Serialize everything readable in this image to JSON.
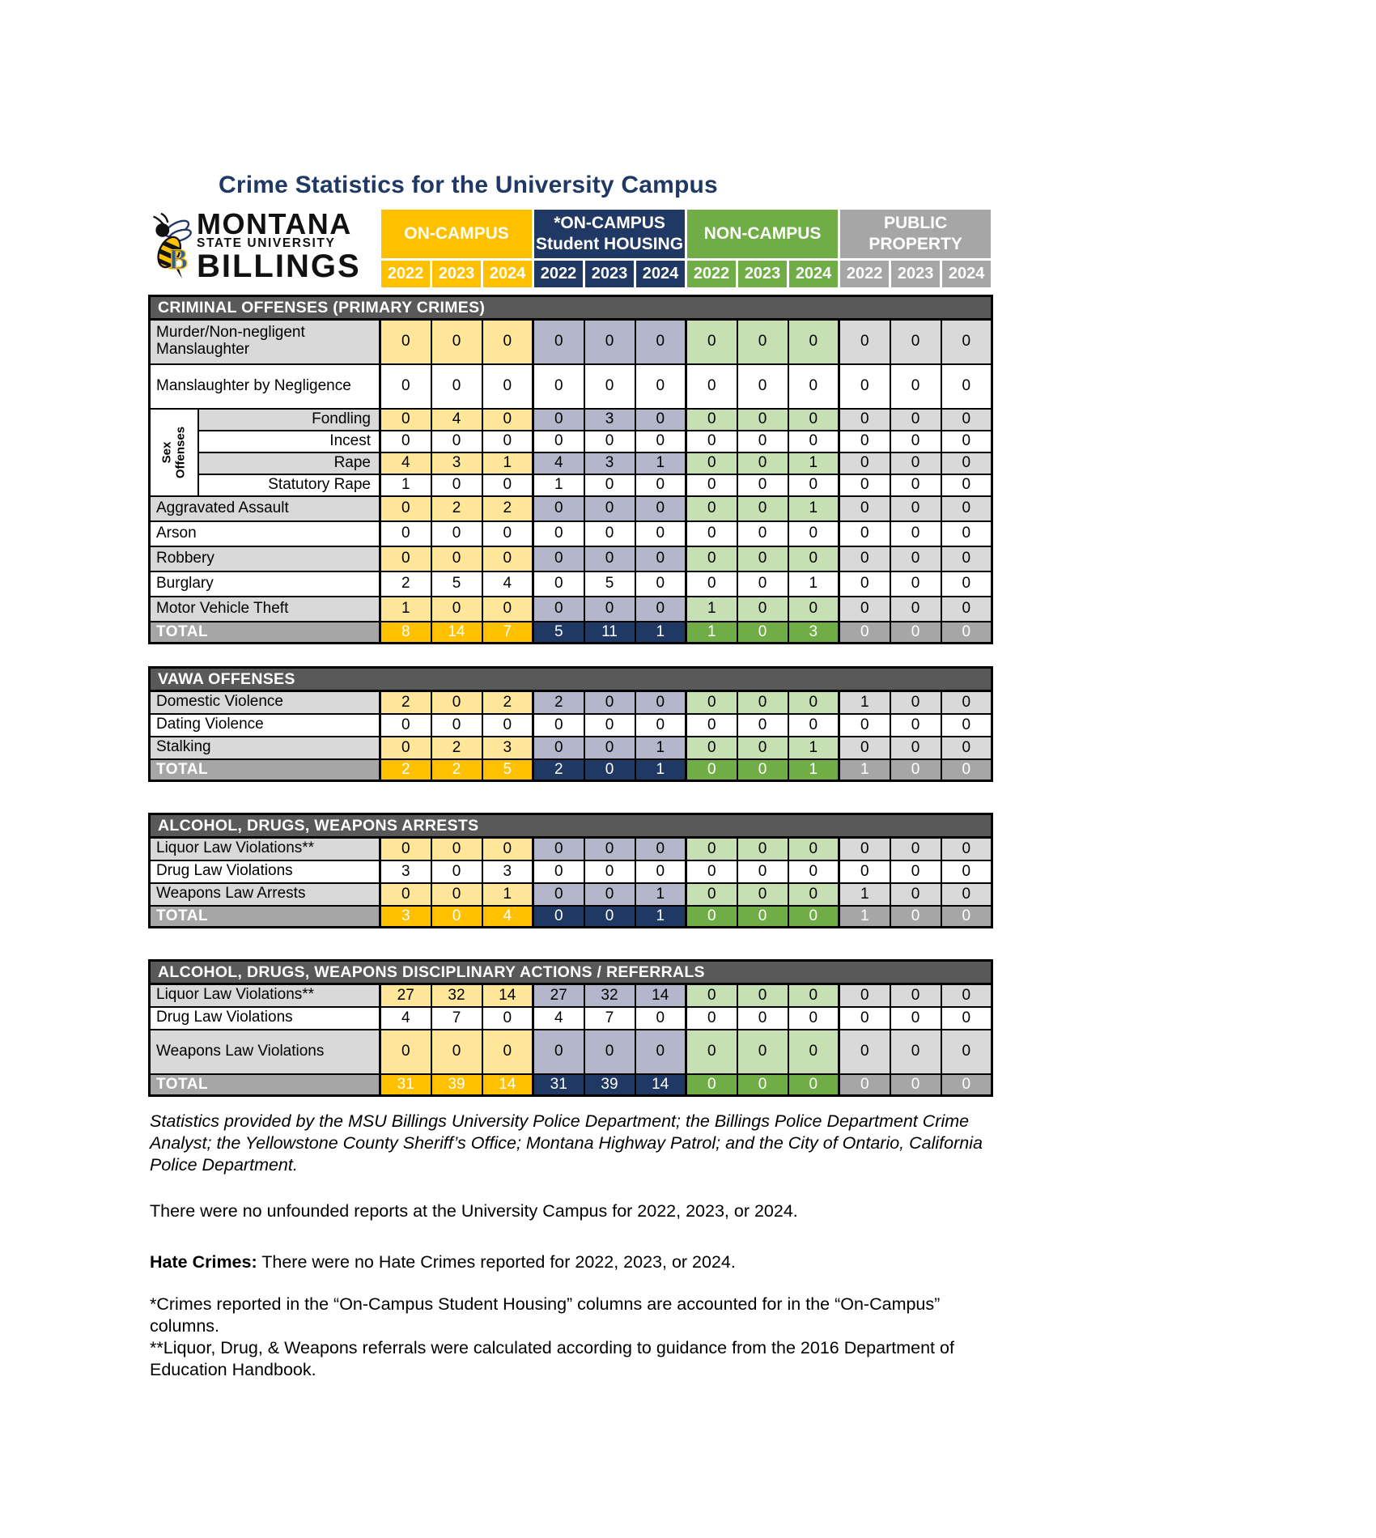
{
  "page": {
    "title": "Crime Statistics for the University Campus"
  },
  "logo": {
    "line1": "MONTANA",
    "line2": "STATE UNIVERSITY",
    "line3": "BILLINGS",
    "mascot": "yellowjacket-bee-with-blue-B"
  },
  "colors": {
    "title_text": "#1F3864",
    "section_bar": "#595959",
    "row_shade": "#D9D9D9",
    "total_label_bg": "#A6A6A6",
    "grid_border": "#000000"
  },
  "table": {
    "years": [
      "2022",
      "2023",
      "2024"
    ],
    "groups": [
      {
        "label": "ON-CAMPUS",
        "color": "#FFC000",
        "light": "#FFE699"
      },
      {
        "label": "*ON-CAMPUS\nStudent HOUSING",
        "color": "#1F3864",
        "light": "#B4B7CB"
      },
      {
        "label": "NON-CAMPUS",
        "color": "#70AD47",
        "light": "#C6E0B4"
      },
      {
        "label": "PUBLIC PROPERTY",
        "color": "#A6A6A6",
        "light": "#D9D9D9"
      }
    ],
    "sections": [
      {
        "title": "CRIMINAL OFFENSES (PRIMARY CRIMES)",
        "rows": [
          {
            "label": "Murder/Non-negligent Manslaughter",
            "shaded": true,
            "tall": true,
            "values": [
              0,
              0,
              0,
              0,
              0,
              0,
              0,
              0,
              0,
              0,
              0,
              0
            ]
          },
          {
            "label": "Manslaughter by Negligence",
            "shaded": false,
            "tall": true,
            "values": [
              0,
              0,
              0,
              0,
              0,
              0,
              0,
              0,
              0,
              0,
              0,
              0
            ]
          },
          {
            "label": "Fondling",
            "sub": true,
            "group_label": "Sex Offenses",
            "group_span": 4,
            "shaded": true,
            "values": [
              0,
              4,
              0,
              0,
              3,
              0,
              0,
              0,
              0,
              0,
              0,
              0
            ]
          },
          {
            "label": "Incest",
            "sub": true,
            "shaded": false,
            "values": [
              0,
              0,
              0,
              0,
              0,
              0,
              0,
              0,
              0,
              0,
              0,
              0
            ]
          },
          {
            "label": "Rape",
            "sub": true,
            "shaded": true,
            "values": [
              4,
              3,
              1,
              4,
              3,
              1,
              0,
              0,
              1,
              0,
              0,
              0
            ]
          },
          {
            "label": "Statutory Rape",
            "sub": true,
            "shaded": false,
            "values": [
              1,
              0,
              0,
              1,
              0,
              0,
              0,
              0,
              0,
              0,
              0,
              0
            ]
          },
          {
            "label": "Aggravated Assault",
            "shaded": true,
            "values": [
              0,
              2,
              2,
              0,
              0,
              0,
              0,
              0,
              1,
              0,
              0,
              0
            ]
          },
          {
            "label": "Arson",
            "shaded": false,
            "values": [
              0,
              0,
              0,
              0,
              0,
              0,
              0,
              0,
              0,
              0,
              0,
              0
            ]
          },
          {
            "label": "Robbery",
            "shaded": true,
            "values": [
              0,
              0,
              0,
              0,
              0,
              0,
              0,
              0,
              0,
              0,
              0,
              0
            ]
          },
          {
            "label": "Burglary",
            "shaded": false,
            "values": [
              2,
              5,
              4,
              0,
              5,
              0,
              0,
              0,
              1,
              0,
              0,
              0
            ]
          },
          {
            "label": "Motor Vehicle Theft",
            "shaded": true,
            "values": [
              1,
              0,
              0,
              0,
              0,
              0,
              1,
              0,
              0,
              0,
              0,
              0
            ]
          },
          {
            "label": "TOTAL",
            "total": true,
            "values": [
              8,
              14,
              7,
              5,
              11,
              1,
              1,
              0,
              3,
              0,
              0,
              0
            ]
          }
        ]
      },
      {
        "title": "VAWA OFFENSES",
        "rows": [
          {
            "label": "Domestic Violence",
            "shaded": true,
            "values": [
              2,
              0,
              2,
              2,
              0,
              0,
              0,
              0,
              0,
              1,
              0,
              0
            ]
          },
          {
            "label": "Dating Violence",
            "shaded": false,
            "values": [
              0,
              0,
              0,
              0,
              0,
              0,
              0,
              0,
              0,
              0,
              0,
              0
            ]
          },
          {
            "label": "Stalking",
            "shaded": true,
            "values": [
              0,
              2,
              3,
              0,
              0,
              1,
              0,
              0,
              1,
              0,
              0,
              0
            ]
          },
          {
            "label": "TOTAL",
            "total": true,
            "values": [
              2,
              2,
              5,
              2,
              0,
              1,
              0,
              0,
              1,
              1,
              0,
              0
            ]
          }
        ]
      },
      {
        "title": "ALCOHOL, DRUGS, WEAPONS ARRESTS",
        "rows": [
          {
            "label": "Liquor Law Violations**",
            "shaded": true,
            "values": [
              0,
              0,
              0,
              0,
              0,
              0,
              0,
              0,
              0,
              0,
              0,
              0
            ]
          },
          {
            "label": "Drug Law Violations",
            "shaded": false,
            "values": [
              3,
              0,
              3,
              0,
              0,
              0,
              0,
              0,
              0,
              0,
              0,
              0
            ]
          },
          {
            "label": "Weapons Law Arrests",
            "shaded": true,
            "values": [
              0,
              0,
              1,
              0,
              0,
              1,
              0,
              0,
              0,
              1,
              0,
              0
            ]
          },
          {
            "label": "TOTAL",
            "total": true,
            "values": [
              3,
              0,
              4,
              0,
              0,
              1,
              0,
              0,
              0,
              1,
              0,
              0
            ]
          }
        ]
      },
      {
        "title": "ALCOHOL, DRUGS, WEAPONS DISCIPLINARY ACTIONS / REFERRALS",
        "rows": [
          {
            "label": "Liquor Law Violations**",
            "shaded": true,
            "values": [
              27,
              32,
              14,
              27,
              32,
              14,
              0,
              0,
              0,
              0,
              0,
              0
            ]
          },
          {
            "label": "Drug Law Violations",
            "shaded": false,
            "values": [
              4,
              7,
              0,
              4,
              7,
              0,
              0,
              0,
              0,
              0,
              0,
              0
            ]
          },
          {
            "label": "Weapons Law Violations",
            "shaded": true,
            "tall": true,
            "values": [
              0,
              0,
              0,
              0,
              0,
              0,
              0,
              0,
              0,
              0,
              0,
              0
            ]
          },
          {
            "label": "TOTAL",
            "total": true,
            "values": [
              31,
              39,
              14,
              31,
              39,
              14,
              0,
              0,
              0,
              0,
              0,
              0
            ]
          }
        ]
      }
    ]
  },
  "footer": {
    "source": "Statistics provided by the MSU Billings University Police Department; the Billings Police Department Crime Analyst; the Yellowstone County Sheriff’s Office; Montana Highway Patrol; and the City of Ontario, California Police Department.",
    "unfounded": "There were no unfounded reports at the University Campus for 2022, 2023, or 2024.",
    "hate_label": "Hate Crimes:",
    "hate_sentence": "There were no Hate Crimes reported for 2022, 2023, or 2024.",
    "note_housing": "*Crimes reported in the “On-Campus Student Housing” columns are accounted for in the “On-Campus” columns.",
    "note_referrals": "**Liquor, Drug, & Weapons referrals were calculated according to guidance from the 2016 Department of Education Handbook."
  }
}
